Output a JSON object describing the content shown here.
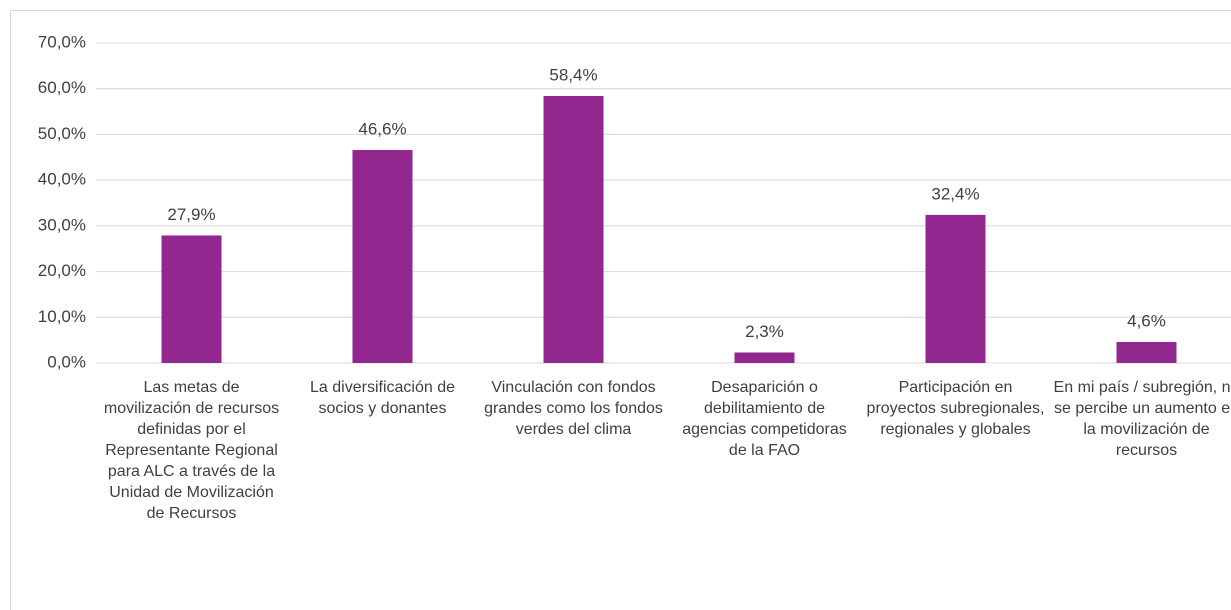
{
  "chart_data": {
    "type": "bar",
    "categories": [
      "Las metas de movilización de recursos definidas por el Representante Regional para ALC a través de la Unidad de Movilización de Recursos",
      "La diversificación de socios y donantes",
      "Vinculación con fondos grandes como los fondos verdes del clima",
      "Desaparición o debilitamiento de agencias competidoras de la FAO",
      "Participación en proyectos subregionales, regionales y globales",
      "En mi país / subregión, no se percibe un aumento en la movilización de recursos"
    ],
    "values": [
      27.9,
      46.6,
      58.4,
      2.3,
      32.4,
      4.6
    ],
    "value_labels": [
      "27,9%",
      "46,6%",
      "58,4%",
      "2,3%",
      "32,4%",
      "4,6%"
    ],
    "color": "#92278f",
    "ylim": [
      0,
      70
    ],
    "yticks": [
      {
        "value": 0,
        "label": "0,0%"
      },
      {
        "value": 10,
        "label": "10,0%"
      },
      {
        "value": 20,
        "label": "20,0%"
      },
      {
        "value": 30,
        "label": "30,0%"
      },
      {
        "value": 40,
        "label": "40,0%"
      },
      {
        "value": 50,
        "label": "50,0%"
      },
      {
        "value": 60,
        "label": "60,0%"
      },
      {
        "value": 70,
        "label": "70,0%"
      }
    ],
    "grid": true
  }
}
